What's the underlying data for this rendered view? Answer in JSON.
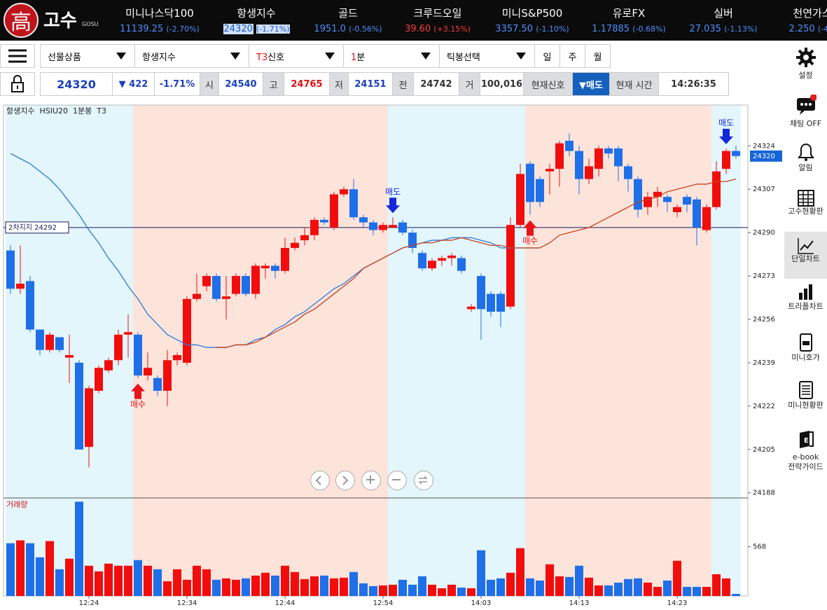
{
  "header": {
    "logo_char": "高",
    "logo_text": "고수",
    "logo_sub": "GOSU",
    "active": 1,
    "tickers": [
      {
        "name": "미니나스닥100",
        "price": "11139.25",
        "change": "(-2.70%)",
        "color": "#4d8fff"
      },
      {
        "name": "항생지수",
        "price": "24320",
        "change": "(-1.71%)",
        "color": "#4d8fff"
      },
      {
        "name": "골드",
        "price": "1951.0",
        "change": "(-0.56%)",
        "color": "#4d8fff"
      },
      {
        "name": "크루드오일",
        "price": "39.60",
        "change": "(+3.15%)",
        "color": "#ff3b3b"
      },
      {
        "name": "미니S&P500",
        "price": "3357.50",
        "change": "(-1.10%)",
        "color": "#4d8fff"
      },
      {
        "name": "유로FX",
        "price": "1.17885",
        "change": "(-0.68%)",
        "color": "#4d8fff"
      },
      {
        "name": "실버",
        "price": "27.035",
        "change": "(-1.13%)",
        "color": "#4d8fff"
      },
      {
        "name": "천연가스",
        "price": "2.250",
        "change": "(-4.5",
        "color": "#4d8fff"
      }
    ]
  },
  "toolbar": {
    "dropdowns": [
      {
        "parts": [
          "선물상품"
        ]
      },
      {
        "parts": [
          "항생지수"
        ]
      },
      {
        "parts": [
          "T3",
          "신호"
        ]
      },
      {
        "parts": [
          "1",
          "분"
        ]
      },
      {
        "parts": [
          "틱봉선택"
        ]
      }
    ],
    "periods": [
      "일",
      "주",
      "월"
    ]
  },
  "quote": {
    "cells": [
      {
        "text": "24320",
        "kind": "price"
      },
      {
        "text": "▼ 422",
        "kind": "blue"
      },
      {
        "text": "-1.71%",
        "kind": "blue"
      },
      {
        "text": "시",
        "kind": "label"
      },
      {
        "text": "24540",
        "kind": "blue"
      },
      {
        "text": "고",
        "kind": "label"
      },
      {
        "text": "24765",
        "kind": "red"
      },
      {
        "text": "저",
        "kind": "label"
      },
      {
        "text": "24151",
        "kind": "blue"
      },
      {
        "text": "전",
        "kind": "label"
      },
      {
        "text": "24742",
        "kind": "dark"
      },
      {
        "text": "거",
        "kind": "label"
      },
      {
        "text": "100,016",
        "kind": "dark"
      },
      {
        "text": "현재신호",
        "kind": "label"
      },
      {
        "text": "▼매도",
        "kind": "signal"
      },
      {
        "text": "현재 시간",
        "kind": "label"
      },
      {
        "text": "14:26:35",
        "kind": "dark"
      }
    ]
  },
  "sidebar": {
    "active": 4,
    "items": [
      {
        "label": [
          "설정"
        ]
      },
      {
        "label": [
          "채팅 OFF"
        ]
      },
      {
        "label": [
          "알림"
        ]
      },
      {
        "label": [
          "고수현황판"
        ]
      },
      {
        "label": [
          "단일차트"
        ]
      },
      {
        "label": [
          "트리플차트"
        ]
      },
      {
        "label": [
          "미니호가"
        ]
      },
      {
        "label": [
          "미니현황판"
        ]
      },
      {
        "label": [
          "e-book",
          "전략가이드"
        ]
      }
    ]
  },
  "chart_data": {
    "type": "candlestick",
    "title": "항생지수  HSIU20  1분봉  T3",
    "categories": [
      null,
      null,
      null,
      null,
      null,
      null,
      null,
      null,
      "12:24",
      null,
      null,
      null,
      null,
      null,
      null,
      null,
      null,
      null,
      "12:34",
      null,
      null,
      null,
      null,
      null,
      null,
      null,
      null,
      null,
      "12:44",
      null,
      null,
      null,
      null,
      null,
      null,
      null,
      null,
      null,
      "12:54",
      null,
      null,
      null,
      null,
      null,
      null,
      null,
      null,
      null,
      "14:03",
      null,
      null,
      null,
      null,
      null,
      null,
      null,
      null,
      null,
      "14:13",
      null,
      null,
      null,
      null,
      null,
      null,
      null,
      null,
      null,
      "14:23",
      null,
      null,
      null,
      null,
      null,
      null
    ],
    "open": [
      24283,
      24268,
      24271,
      24252,
      24244,
      24249,
      24241,
      24239,
      24206,
      24228,
      24236,
      24240,
      24250,
      24250,
      24234,
      24233,
      24228,
      24240,
      24239,
      24264,
      24269,
      24273,
      24264,
      24266,
      24273,
      24266,
      24276,
      24277,
      24275,
      24284,
      24287,
      24289,
      24295,
      24292,
      24305,
      24307,
      24296,
      24294,
      24291,
      24292,
      24294,
      24290,
      24282,
      24276,
      24279,
      24280,
      24280,
      24260,
      24273,
      24266,
      24266,
      24261,
      24293,
      24317,
      24311,
      24314,
      24315,
      24326,
      24322,
      24311,
      24315,
      24323,
      24323,
      24316,
      24311,
      24300,
      24304,
      24304,
      24298,
      24304,
      24303,
      24291,
      24300,
      24315,
      24322
    ],
    "high": [
      24285,
      24285,
      24273,
      24252,
      24251,
      24249,
      24250,
      24240,
      24230,
      24238,
      24241,
      24252,
      24258,
      24251,
      24243,
      24234,
      24244,
      24243,
      24265,
      24274,
      24274,
      24274,
      24273,
      24274,
      24274,
      24278,
      24278,
      24278,
      24288,
      24288,
      24292,
      24296,
      24296,
      24306,
      24308,
      24311,
      24297,
      24295,
      24294,
      24296,
      24295,
      24291,
      24283,
      24280,
      24281,
      24282,
      24281,
      24262,
      24274,
      24267,
      24267,
      24296,
      24317,
      24318,
      24312,
      24317,
      24326,
      24329,
      24324,
      24319,
      24324,
      24324,
      24324,
      24317,
      24312,
      24306,
      24308,
      24305,
      24301,
      24305,
      24304,
      24301,
      24318,
      24323,
      24324
    ],
    "low": [
      24266,
      24266,
      24251,
      24242,
      24243,
      24243,
      24231,
      24205,
      24198,
      24227,
      24235,
      24238,
      24241,
      24233,
      24232,
      24226,
      24222,
      24238,
      24238,
      24263,
      24267,
      24263,
      24256,
      24265,
      24265,
      24264,
      24272,
      24272,
      24274,
      24283,
      24285,
      24287,
      24293,
      24291,
      24304,
      24295,
      24292,
      24289,
      24290,
      24292,
      24289,
      24282,
      24275,
      24275,
      24277,
      24277,
      24274,
      24259,
      24248,
      24257,
      24253,
      24260,
      24292,
      24297,
      24300,
      24305,
      24308,
      24320,
      24305,
      24309,
      24312,
      24319,
      24310,
      24306,
      24296,
      24297,
      24300,
      24298,
      24296,
      24298,
      24285,
      24290,
      24299,
      24313,
      24319
    ],
    "close": [
      24268,
      24270,
      24252,
      24244,
      24250,
      24244,
      24242,
      24205,
      24229,
      24237,
      24240,
      24250,
      24251,
      24234,
      24237,
      24228,
      24240,
      24242,
      24264,
      24266,
      24273,
      24264,
      24265,
      24273,
      24266,
      24277,
      24277,
      24275,
      24284,
      24286,
      24289,
      24295,
      24294,
      24305,
      24307,
      24296,
      24294,
      24291,
      24293,
      24293,
      24290,
      24284,
      24276,
      24279,
      24280,
      24281,
      24275,
      24261,
      24260,
      24259,
      24259,
      24293,
      24313,
      24302,
      24302,
      24315,
      24325,
      24322,
      24311,
      24316,
      24323,
      24321,
      24316,
      24311,
      24299,
      24304,
      24306,
      24302,
      24300,
      24301,
      24292,
      24300,
      24314,
      24322,
      24320
    ],
    "up_color": "#f20d0d",
    "down_color": "#1e6fe8",
    "series": [
      {
        "color": "#2a7ad6",
        "values": [
          24321,
          24319,
          24317,
          24314,
          24311,
          24307,
          24302,
          24297,
          24291,
          24286,
          24280,
          24275,
          24269,
          24264,
          24258,
          24254,
          24250,
          24248,
          24246,
          24246,
          24245,
          24245,
          24245,
          24246,
          24246,
          24248,
          24249,
          24252,
          24254,
          24257,
          24259,
          24262,
          24265,
          24268,
          24270,
          24273,
          24276,
          24278,
          24280,
          24282,
          24284,
          24285,
          24286,
          24287,
          24287,
          24288,
          24288,
          24288,
          24287,
          24286,
          24284,
          24284,
          24284,
          24284,
          24284,
          null,
          null,
          null,
          null,
          null,
          null,
          null,
          null,
          null,
          null,
          null,
          null,
          null,
          null,
          null,
          null,
          null,
          null,
          null,
          null
        ]
      },
      {
        "color": "#c8401c",
        "values": [
          null,
          null,
          null,
          null,
          null,
          null,
          null,
          null,
          null,
          null,
          null,
          null,
          null,
          null,
          null,
          null,
          null,
          null,
          null,
          null,
          null,
          24245,
          24245,
          24246,
          24246,
          24247,
          24249,
          24251,
          24253,
          24255,
          24258,
          24260,
          24263,
          24266,
          24269,
          24272,
          24276,
          24278,
          24280,
          24282,
          24284,
          24285,
          24286,
          24286,
          24287,
          24287,
          24288,
          24287,
          24286,
          24285,
          24285,
          24284,
          24284,
          24284,
          24284,
          24286,
          24289,
          24290,
          24291,
          24292,
          24294,
          24296,
          24298,
          24300,
          24302,
          24303,
          24304,
          24306,
          24307,
          24308,
          24309,
          24309,
          24310,
          24310,
          24311
        ]
      }
    ],
    "ylim": [
      24186,
      24340
    ],
    "yticks": [
      24324,
      24307,
      24290,
      24273,
      24256,
      24239,
      24222,
      24205,
      24188
    ],
    "last_price": 24320,
    "support": {
      "label": "2차지지 24292",
      "value": 24292
    },
    "zones": [
      {
        "from": 0,
        "to": 12,
        "color": "#e3f6fc"
      },
      {
        "from": 13,
        "to": 38,
        "color": "#fde4db"
      },
      {
        "from": 39,
        "to": 52,
        "color": "#e3f6fc"
      },
      {
        "from": 53,
        "to": 71,
        "color": "#fde4db"
      },
      {
        "from": 72,
        "to": 74,
        "color": "#e3f6fc"
      }
    ],
    "signals": [
      {
        "index": 13,
        "label": "매수",
        "direction": "up",
        "color": "#e8141a"
      },
      {
        "index": 39,
        "label": "매도",
        "direction": "down",
        "color": "#1428d8"
      },
      {
        "index": 53,
        "label": "매수",
        "direction": "up",
        "color": "#e8141a"
      },
      {
        "index": 73,
        "label": "매도",
        "direction": "down",
        "color": "#1428d8"
      }
    ],
    "volume": {
      "title": "거래량",
      "ylim": [
        0,
        1130
      ],
      "yticks": [
        568
      ],
      "values": [
        608,
        641,
        608,
        446,
        633,
        308,
        430,
        1087,
        349,
        284,
        373,
        349,
        349,
        414,
        349,
        308,
        170,
        308,
        187,
        349,
        308,
        187,
        203,
        187,
        203,
        235,
        268,
        235,
        349,
        276,
        195,
        227,
        235,
        203,
        211,
        276,
        146,
        114,
        122,
        130,
        187,
        130,
        227,
        130,
        89,
        130,
        97,
        89,
        527,
        187,
        203,
        268,
        551,
        203,
        178,
        365,
        227,
        219,
        349,
        211,
        122,
        122,
        154,
        195,
        203,
        154,
        105,
        178,
        406,
        105,
        105,
        105,
        251,
        203,
        24
      ]
    }
  }
}
